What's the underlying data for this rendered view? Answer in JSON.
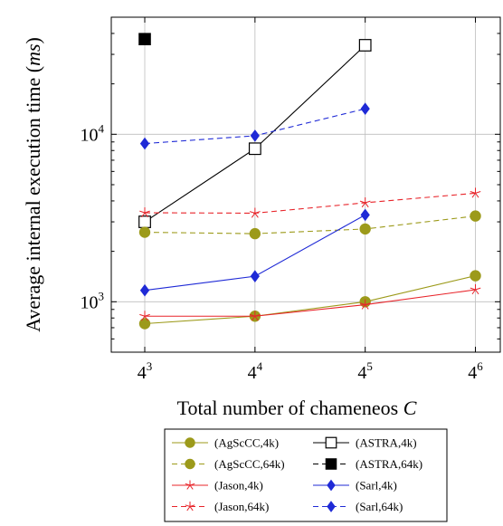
{
  "chart_data": {
    "type": "line",
    "xlabel": "Total number of chameneos",
    "xlabel_var": "C",
    "ylabel": "Average internal execution time (",
    "ylabel_unit": "ms",
    "ylabel_close": ")",
    "x_scale": "log4",
    "y_scale": "log10",
    "xlim": [
      42,
      5600
    ],
    "ylim": [
      500,
      50000
    ],
    "x_ticks": [
      {
        "base": "4",
        "exp": "3",
        "value": 64
      },
      {
        "base": "4",
        "exp": "4",
        "value": 256
      },
      {
        "base": "4",
        "exp": "5",
        "value": 1024
      },
      {
        "base": "4",
        "exp": "6",
        "value": 4096
      }
    ],
    "y_ticks": [
      {
        "base": "10",
        "exp": "3",
        "value": 1000
      },
      {
        "base": "10",
        "exp": "4",
        "value": 10000
      }
    ],
    "grid": true,
    "legend_position": "bottom",
    "series": [
      {
        "name": "(AgScCC,4k)",
        "color": "#9c9a1a",
        "dash": "solid",
        "marker": "circle",
        "points": [
          [
            64,
            740
          ],
          [
            256,
            820
          ],
          [
            1024,
            1000
          ],
          [
            4096,
            1430
          ]
        ]
      },
      {
        "name": "(ASTRA,4k)",
        "color": "#000000",
        "dash": "solid",
        "marker": "square-open",
        "points": [
          [
            64,
            3000
          ],
          [
            256,
            8200
          ],
          [
            1024,
            34000
          ]
        ]
      },
      {
        "name": "(AgScCC,64k)",
        "color": "#9c9a1a",
        "dash": "dashed",
        "marker": "circle",
        "points": [
          [
            64,
            2600
          ],
          [
            256,
            2550
          ],
          [
            1024,
            2720
          ],
          [
            4096,
            3250
          ]
        ]
      },
      {
        "name": "(ASTRA,64k)",
        "color": "#000000",
        "dash": "dashed",
        "marker": "square-filled",
        "points": [
          [
            64,
            37000
          ]
        ]
      },
      {
        "name": "(Jason,4k)",
        "color": "#e8242a",
        "dash": "solid",
        "marker": "star",
        "points": [
          [
            64,
            820
          ],
          [
            256,
            820
          ],
          [
            1024,
            960
          ],
          [
            4096,
            1180
          ]
        ]
      },
      {
        "name": "(Sarl,4k)",
        "color": "#1f2ad6",
        "dash": "solid",
        "marker": "diamond",
        "points": [
          [
            64,
            1170
          ],
          [
            256,
            1420
          ],
          [
            1024,
            3300
          ]
        ]
      },
      {
        "name": "(Jason,64k)",
        "color": "#e8242a",
        "dash": "dashed",
        "marker": "star",
        "points": [
          [
            64,
            3400
          ],
          [
            256,
            3380
          ],
          [
            1024,
            3900
          ],
          [
            4096,
            4450
          ]
        ]
      },
      {
        "name": "(Sarl,64k)",
        "color": "#1f2ad6",
        "dash": "dashed",
        "marker": "diamond",
        "points": [
          [
            64,
            8800
          ],
          [
            256,
            9800
          ],
          [
            1024,
            14200
          ]
        ]
      }
    ]
  }
}
